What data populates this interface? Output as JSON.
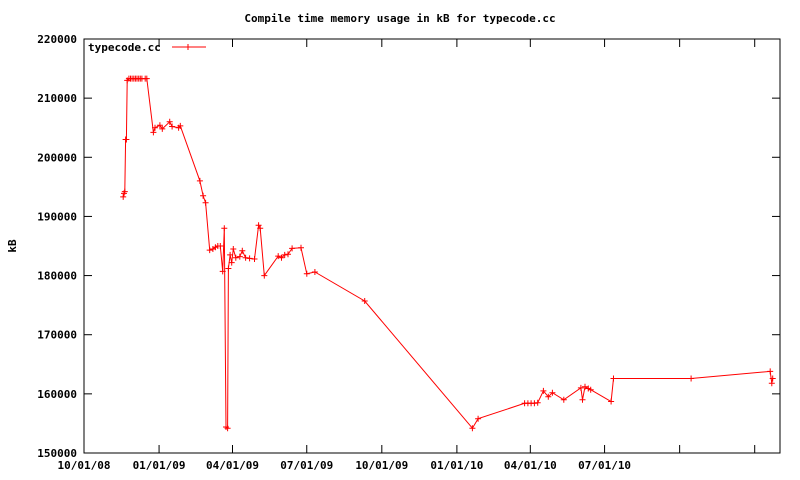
{
  "chart_data": {
    "type": "line",
    "title": "Compile time memory usage in kB for typecode.cc",
    "xlabel": "",
    "ylabel": "kB",
    "ylim": [
      150000,
      220000
    ],
    "y_ticks": [
      150000,
      160000,
      170000,
      180000,
      190000,
      200000,
      210000,
      220000
    ],
    "x_tick_labels": [
      "10/01/08",
      "01/01/09",
      "04/01/09",
      "07/01/09",
      "10/01/09",
      "01/01/10",
      "04/01/10",
      "07/01/10"
    ],
    "x_tick_dates": [
      "2008-10-01",
      "2009-01-01",
      "2009-04-01",
      "2009-07-01",
      "2009-10-01",
      "2010-01-01",
      "2010-04-01",
      "2010-07-01"
    ],
    "xlim": [
      "2008-10-01",
      "2011-02-01"
    ],
    "grid": false,
    "legend": "top-left",
    "line_color": "#ff0000",
    "series": [
      {
        "name": "typecode.cc",
        "points": [
          [
            "2008-11-18",
            193300
          ],
          [
            "2008-11-19",
            193900
          ],
          [
            "2008-11-20",
            194200
          ],
          [
            "2008-11-21",
            203000
          ],
          [
            "2008-11-22",
            203000
          ],
          [
            "2008-11-23",
            213000
          ],
          [
            "2008-11-25",
            213300
          ],
          [
            "2008-11-27",
            213300
          ],
          [
            "2008-11-29",
            213300
          ],
          [
            "2008-12-01",
            213300
          ],
          [
            "2008-12-03",
            213300
          ],
          [
            "2008-12-05",
            213300
          ],
          [
            "2008-12-07",
            213300
          ],
          [
            "2008-12-09",
            213300
          ],
          [
            "2008-12-11",
            213300
          ],
          [
            "2008-12-15",
            213300
          ],
          [
            "2008-12-17",
            213300
          ],
          [
            "2008-12-25",
            204200
          ],
          [
            "2008-12-27",
            205000
          ],
          [
            "2009-01-02",
            205400
          ],
          [
            "2009-01-05",
            204800
          ],
          [
            "2009-01-14",
            206000
          ],
          [
            "2009-01-17",
            205200
          ],
          [
            "2009-01-25",
            205000
          ],
          [
            "2009-01-27",
            205300
          ],
          [
            "2009-02-20",
            196000
          ],
          [
            "2009-02-24",
            193500
          ],
          [
            "2009-02-27",
            192300
          ],
          [
            "2009-03-04",
            184300
          ],
          [
            "2009-03-08",
            184500
          ],
          [
            "2009-03-11",
            184800
          ],
          [
            "2009-03-14",
            185000
          ],
          [
            "2009-03-17",
            185000
          ],
          [
            "2009-03-20",
            180700
          ],
          [
            "2009-03-22",
            188000
          ],
          [
            "2009-03-24",
            154400
          ],
          [
            "2009-03-26",
            154200
          ],
          [
            "2009-03-27",
            181200
          ],
          [
            "2009-03-29",
            183500
          ],
          [
            "2009-03-31",
            182200
          ],
          [
            "2009-04-02",
            184500
          ],
          [
            "2009-04-05",
            183000
          ],
          [
            "2009-04-10",
            183200
          ],
          [
            "2009-04-13",
            184200
          ],
          [
            "2009-04-17",
            183000
          ],
          [
            "2009-04-22",
            182900
          ],
          [
            "2009-04-28",
            182800
          ],
          [
            "2009-05-03",
            188500
          ],
          [
            "2009-05-05",
            188000
          ],
          [
            "2009-05-10",
            180000
          ],
          [
            "2009-05-27",
            183300
          ],
          [
            "2009-05-31",
            183000
          ],
          [
            "2009-06-04",
            183500
          ],
          [
            "2009-06-08",
            183600
          ],
          [
            "2009-06-13",
            184600
          ],
          [
            "2009-06-24",
            184700
          ],
          [
            "2009-07-01",
            180300
          ],
          [
            "2009-07-11",
            180600
          ],
          [
            "2009-09-10",
            175700
          ],
          [
            "2010-01-20",
            154200
          ],
          [
            "2010-01-27",
            155800
          ],
          [
            "2010-03-25",
            158400
          ],
          [
            "2010-03-29",
            158400
          ],
          [
            "2010-04-02",
            158400
          ],
          [
            "2010-04-06",
            158400
          ],
          [
            "2010-04-10",
            158500
          ],
          [
            "2010-04-17",
            160500
          ],
          [
            "2010-04-23",
            159500
          ],
          [
            "2010-04-28",
            160200
          ],
          [
            "2010-05-12",
            159000
          ],
          [
            "2010-06-02",
            161000
          ],
          [
            "2010-06-04",
            159000
          ],
          [
            "2010-06-07",
            161200
          ],
          [
            "2010-06-11",
            160900
          ],
          [
            "2010-06-14",
            160700
          ],
          [
            "2010-07-09",
            158700
          ],
          [
            "2010-07-12",
            162600
          ],
          [
            "2010-10-15",
            162600
          ],
          [
            "2011-01-20",
            163800
          ],
          [
            "2011-01-22",
            161800
          ],
          [
            "2011-01-23",
            162600
          ]
        ]
      }
    ]
  }
}
